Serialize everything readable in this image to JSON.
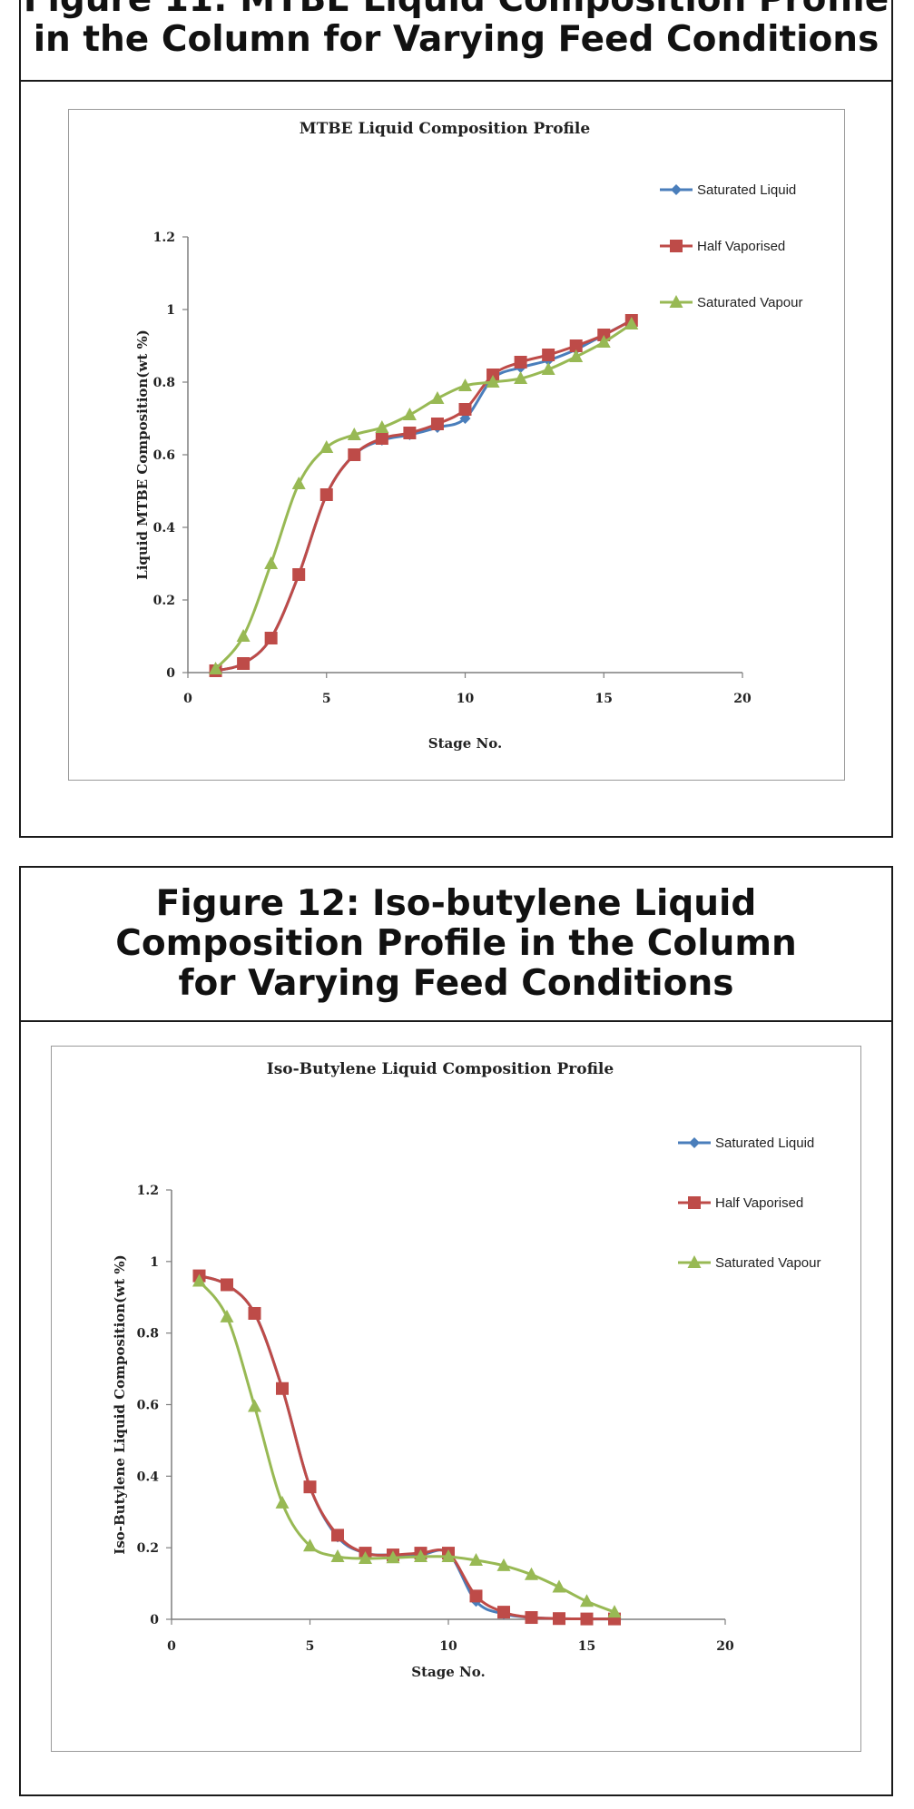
{
  "panels": [
    {
      "heading": "Figure 11: MTBE Liquid Composition Profile\nin the Column for Varying Feed Conditions"
    },
    {
      "heading": "Figure 12: Iso-butylene Liquid\nComposition Profile in the Column\nfor Varying Feed Conditions"
    }
  ],
  "chart_data": [
    {
      "type": "line",
      "title": "MTBE Liquid Composition Profile",
      "xlabel": "Stage No.",
      "ylabel": "Liquid MTBE Composition(wt %)",
      "xlim": [
        0,
        20
      ],
      "ylim": [
        0,
        1.2
      ],
      "xticks": [
        "0",
        "5",
        "10",
        "15",
        "20"
      ],
      "yticks": [
        "0",
        "0.2",
        "0.4",
        "0.6",
        "0.8",
        "1",
        "1.2"
      ],
      "grid": false,
      "legend": "right",
      "x": [
        1,
        2,
        3,
        4,
        5,
        6,
        7,
        8,
        9,
        10,
        11,
        12,
        13,
        14,
        15,
        16
      ],
      "series": [
        {
          "name": "Saturated Liquid",
          "color": "#4a7ebb",
          "marker": "diamond",
          "values": [
            0.005,
            0.025,
            0.095,
            0.27,
            0.49,
            0.6,
            0.64,
            0.655,
            0.675,
            0.7,
            0.81,
            0.84,
            0.86,
            0.89,
            0.93,
            0.97
          ]
        },
        {
          "name": "Half Vaporised",
          "color": "#be4b48",
          "marker": "square",
          "values": [
            0.005,
            0.025,
            0.095,
            0.27,
            0.49,
            0.6,
            0.645,
            0.66,
            0.685,
            0.725,
            0.82,
            0.855,
            0.875,
            0.9,
            0.93,
            0.97
          ]
        },
        {
          "name": "Saturated Vapour",
          "color": "#98b954",
          "marker": "triangle",
          "values": [
            0.01,
            0.1,
            0.3,
            0.52,
            0.62,
            0.655,
            0.675,
            0.71,
            0.755,
            0.79,
            0.8,
            0.81,
            0.835,
            0.87,
            0.91,
            0.96
          ]
        }
      ]
    },
    {
      "type": "line",
      "title": "Iso-Butylene Liquid Composition Profile",
      "xlabel": "Stage No.",
      "ylabel": "Iso-Butylene Liquid Composition(wt %)",
      "xlim": [
        0,
        20
      ],
      "ylim": [
        0,
        1.2
      ],
      "xticks": [
        "0",
        "5",
        "10",
        "15",
        "20"
      ],
      "yticks": [
        "0",
        "0.2",
        "0.4",
        "0.6",
        "0.8",
        "1",
        "1.2"
      ],
      "grid": false,
      "legend": "right",
      "x": [
        1,
        2,
        3,
        4,
        5,
        6,
        7,
        8,
        9,
        10,
        11,
        12,
        13,
        14,
        15,
        16
      ],
      "series": [
        {
          "name": "Saturated Liquid",
          "color": "#4a7ebb",
          "marker": "diamond",
          "values": [
            0.96,
            0.935,
            0.855,
            0.645,
            0.37,
            0.23,
            0.185,
            0.18,
            0.18,
            0.185,
            0.05,
            0.015,
            0.005,
            0.002,
            0.001,
            0.001
          ]
        },
        {
          "name": "Half Vaporised",
          "color": "#be4b48",
          "marker": "square",
          "values": [
            0.96,
            0.935,
            0.855,
            0.645,
            0.37,
            0.235,
            0.185,
            0.18,
            0.185,
            0.185,
            0.065,
            0.02,
            0.005,
            0.002,
            0.001,
            0.001
          ]
        },
        {
          "name": "Saturated Vapour",
          "color": "#98b954",
          "marker": "triangle",
          "values": [
            0.945,
            0.845,
            0.595,
            0.325,
            0.205,
            0.175,
            0.17,
            0.172,
            0.175,
            0.175,
            0.165,
            0.15,
            0.125,
            0.09,
            0.05,
            0.02
          ]
        }
      ]
    }
  ]
}
